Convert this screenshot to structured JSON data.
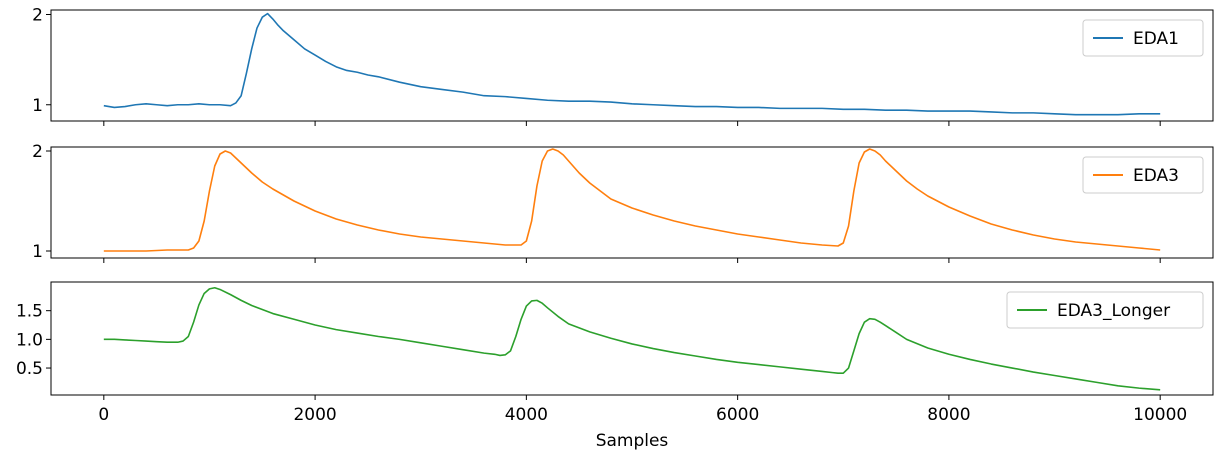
{
  "chart_data": {
    "type": "line",
    "xlabel": "Samples",
    "xlim": [
      -500,
      10500
    ],
    "x_ticks": [
      0,
      2000,
      4000,
      6000,
      8000,
      10000
    ],
    "x_tick_labels": [
      "0",
      "2000",
      "4000",
      "6000",
      "8000",
      "10000"
    ],
    "grid": false,
    "shared_x": true,
    "subplots": [
      {
        "series_name": "EDA1",
        "color": "#1f77b4",
        "legend_position": "upper right",
        "ylim": [
          0.82,
          2.05
        ],
        "y_ticks": [
          1,
          2
        ],
        "y_tick_labels": [
          "1",
          "2"
        ],
        "x": [
          0,
          100,
          200,
          300,
          400,
          500,
          600,
          700,
          800,
          900,
          1000,
          1100,
          1200,
          1250,
          1300,
          1350,
          1400,
          1450,
          1500,
          1550,
          1600,
          1650,
          1700,
          1800,
          1900,
          2000,
          2100,
          2200,
          2300,
          2400,
          2500,
          2600,
          2800,
          3000,
          3200,
          3400,
          3600,
          3800,
          4000,
          4200,
          4400,
          4600,
          4800,
          5000,
          5200,
          5400,
          5600,
          5800,
          6000,
          6200,
          6400,
          6600,
          6800,
          7000,
          7200,
          7400,
          7600,
          7800,
          8000,
          8200,
          8400,
          8600,
          8800,
          9000,
          9200,
          9400,
          9600,
          9800,
          10000
        ],
        "y": [
          0.99,
          0.97,
          0.98,
          1.0,
          1.01,
          1.0,
          0.99,
          1.0,
          1.0,
          1.01,
          1.0,
          1.0,
          0.99,
          1.02,
          1.1,
          1.35,
          1.62,
          1.85,
          1.97,
          2.01,
          1.95,
          1.88,
          1.82,
          1.72,
          1.62,
          1.55,
          1.48,
          1.42,
          1.38,
          1.36,
          1.33,
          1.31,
          1.25,
          1.2,
          1.17,
          1.14,
          1.1,
          1.09,
          1.07,
          1.05,
          1.04,
          1.04,
          1.03,
          1.01,
          1.0,
          0.99,
          0.98,
          0.98,
          0.97,
          0.97,
          0.96,
          0.96,
          0.96,
          0.95,
          0.95,
          0.94,
          0.94,
          0.93,
          0.93,
          0.93,
          0.92,
          0.91,
          0.91,
          0.9,
          0.89,
          0.89,
          0.89,
          0.9,
          0.9
        ]
      },
      {
        "series_name": "EDA3",
        "color": "#ff7f0e",
        "legend_position": "upper right",
        "ylim": [
          0.93,
          2.04
        ],
        "y_ticks": [
          1,
          2
        ],
        "y_tick_labels": [
          "1",
          "2"
        ],
        "x": [
          0,
          200,
          400,
          600,
          800,
          850,
          900,
          950,
          1000,
          1050,
          1100,
          1150,
          1200,
          1300,
          1400,
          1500,
          1600,
          1800,
          2000,
          2200,
          2400,
          2600,
          2800,
          3000,
          3200,
          3400,
          3600,
          3800,
          3950,
          4000,
          4050,
          4100,
          4150,
          4200,
          4250,
          4300,
          4350,
          4400,
          4500,
          4600,
          4700,
          4800,
          5000,
          5200,
          5400,
          5600,
          5800,
          6000,
          6200,
          6400,
          6600,
          6800,
          6950,
          7000,
          7050,
          7100,
          7150,
          7200,
          7250,
          7300,
          7350,
          7400,
          7500,
          7600,
          7700,
          7800,
          8000,
          8200,
          8400,
          8600,
          8800,
          9000,
          9200,
          9400,
          9600,
          9800,
          10000
        ],
        "y": [
          1.0,
          1.0,
          1.0,
          1.01,
          1.01,
          1.03,
          1.1,
          1.3,
          1.6,
          1.85,
          1.97,
          2.0,
          1.98,
          1.88,
          1.78,
          1.69,
          1.62,
          1.5,
          1.4,
          1.32,
          1.26,
          1.21,
          1.17,
          1.14,
          1.12,
          1.1,
          1.08,
          1.06,
          1.06,
          1.1,
          1.3,
          1.65,
          1.9,
          2.0,
          2.02,
          2.0,
          1.96,
          1.9,
          1.78,
          1.68,
          1.6,
          1.52,
          1.43,
          1.36,
          1.3,
          1.25,
          1.21,
          1.17,
          1.14,
          1.11,
          1.08,
          1.06,
          1.05,
          1.08,
          1.25,
          1.6,
          1.88,
          1.99,
          2.02,
          2.0,
          1.96,
          1.9,
          1.8,
          1.7,
          1.62,
          1.55,
          1.44,
          1.35,
          1.27,
          1.21,
          1.16,
          1.12,
          1.09,
          1.07,
          1.05,
          1.03,
          1.01
        ]
      },
      {
        "series_name": "EDA3_Longer",
        "color": "#2ca02c",
        "legend_position": "upper right",
        "ylim": [
          0.03,
          2.0
        ],
        "y_ticks": [
          0.5,
          1.0,
          1.5
        ],
        "y_tick_labels": [
          "0.5",
          "1.0",
          "1.5"
        ],
        "x": [
          0,
          100,
          200,
          300,
          400,
          500,
          600,
          650,
          700,
          750,
          800,
          850,
          900,
          950,
          1000,
          1050,
          1100,
          1200,
          1300,
          1400,
          1500,
          1600,
          1800,
          2000,
          2200,
          2400,
          2600,
          2800,
          3000,
          3200,
          3400,
          3600,
          3700,
          3750,
          3800,
          3850,
          3900,
          3950,
          4000,
          4050,
          4100,
          4150,
          4200,
          4300,
          4400,
          4600,
          4800,
          5000,
          5200,
          5400,
          5600,
          5800,
          6000,
          6200,
          6400,
          6600,
          6800,
          6900,
          6950,
          7000,
          7050,
          7100,
          7150,
          7200,
          7250,
          7300,
          7350,
          7400,
          7500,
          7600,
          7800,
          8000,
          8200,
          8400,
          8600,
          8800,
          9000,
          9200,
          9400,
          9600,
          9800,
          10000
        ],
        "y": [
          1.0,
          1.0,
          0.99,
          0.98,
          0.97,
          0.96,
          0.95,
          0.95,
          0.95,
          0.97,
          1.05,
          1.3,
          1.6,
          1.8,
          1.88,
          1.9,
          1.87,
          1.78,
          1.68,
          1.59,
          1.52,
          1.45,
          1.35,
          1.25,
          1.17,
          1.11,
          1.05,
          1.0,
          0.94,
          0.88,
          0.82,
          0.76,
          0.74,
          0.72,
          0.73,
          0.8,
          1.05,
          1.35,
          1.58,
          1.67,
          1.68,
          1.63,
          1.55,
          1.4,
          1.27,
          1.13,
          1.02,
          0.92,
          0.84,
          0.77,
          0.71,
          0.65,
          0.6,
          0.56,
          0.52,
          0.48,
          0.44,
          0.42,
          0.41,
          0.41,
          0.5,
          0.8,
          1.1,
          1.3,
          1.36,
          1.35,
          1.3,
          1.24,
          1.12,
          1.0,
          0.85,
          0.74,
          0.65,
          0.57,
          0.5,
          0.43,
          0.37,
          0.31,
          0.25,
          0.19,
          0.15,
          0.12
        ]
      }
    ]
  }
}
